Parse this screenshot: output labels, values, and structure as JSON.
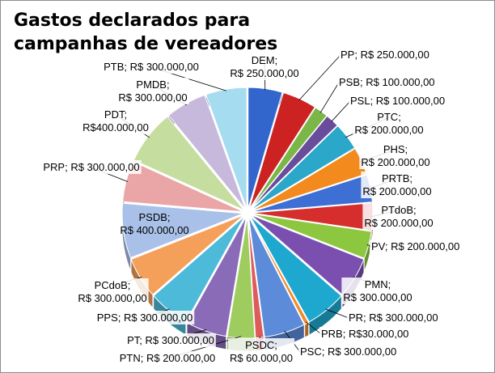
{
  "chart_data": {
    "type": "pie",
    "title": "Gastos declarados para campanhas de vereadores",
    "style": "3d-exploded",
    "legend": "none",
    "slices": [
      {
        "party": "DEM",
        "label": "R$ 250.000,00",
        "value": 250000,
        "color": "#3366cc"
      },
      {
        "party": "PP",
        "label": "R$ 250.000,00",
        "value": 250000,
        "color": "#cc2222"
      },
      {
        "party": "PSB",
        "label": "R$ 100.000,00",
        "value": 100000,
        "color": "#7ab648"
      },
      {
        "party": "PSL",
        "label": "R$ 100.000,00",
        "value": 100000,
        "color": "#6a4c9c"
      },
      {
        "party": "PTC",
        "label": "R$ 200.000,00",
        "value": 200000,
        "color": "#2aa7c9"
      },
      {
        "party": "PHS",
        "label": "R$ 200.000,00",
        "value": 200000,
        "color": "#f28a1e"
      },
      {
        "party": "PRTB",
        "label": "R$ 200.000,00",
        "value": 200000,
        "color": "#3d6fd4"
      },
      {
        "party": "PTdoB",
        "label": "R$ 200.000,00",
        "value": 200000,
        "color": "#d62d2d"
      },
      {
        "party": "PV",
        "label": "R$ 200.000,00",
        "value": 200000,
        "color": "#8dc63f"
      },
      {
        "party": "PMN",
        "label": "R$ 300.000,00",
        "value": 300000,
        "color": "#7a4fb0"
      },
      {
        "party": "PR",
        "label": "R$ 300.000,00",
        "value": 300000,
        "color": "#1fa8cf"
      },
      {
        "party": "PRB",
        "label": "R$30.000,00",
        "value": 30000,
        "color": "#f08a2c"
      },
      {
        "party": "PSC",
        "label": "R$ 300.000,00",
        "value": 300000,
        "color": "#5b8bd9"
      },
      {
        "party": "PSDC",
        "label": "R$ 60.000,00",
        "value": 60000,
        "color": "#de5b5b"
      },
      {
        "party": "PTN",
        "label": "R$ 200.000,00",
        "value": 200000,
        "color": "#9fcc5e"
      },
      {
        "party": "PT",
        "label": "R$ 300.000,00",
        "value": 300000,
        "color": "#8a6bb8"
      },
      {
        "party": "PPS",
        "label": "R$ 300.000,00",
        "value": 300000,
        "color": "#4dbad9"
      },
      {
        "party": "PCdoB",
        "label": "R$ 300.000,00",
        "value": 300000,
        "color": "#f5a05a"
      },
      {
        "party": "PSDB",
        "label": "R$ 400.000,00",
        "value": 400000,
        "color": "#a9c0e8"
      },
      {
        "party": "PRP",
        "label": "R$ 300.000,00",
        "value": 300000,
        "color": "#eaa6a6"
      },
      {
        "party": "PDT",
        "label": "R$400.000,00",
        "value": 400000,
        "color": "#c5dea0"
      },
      {
        "party": "PMDB",
        "label": "R$ 300.000,00",
        "value": 300000,
        "color": "#c7b9dc"
      },
      {
        "party": "PTB",
        "label": "R$ 300.000,00",
        "value": 300000,
        "color": "#a6dcef"
      }
    ]
  }
}
